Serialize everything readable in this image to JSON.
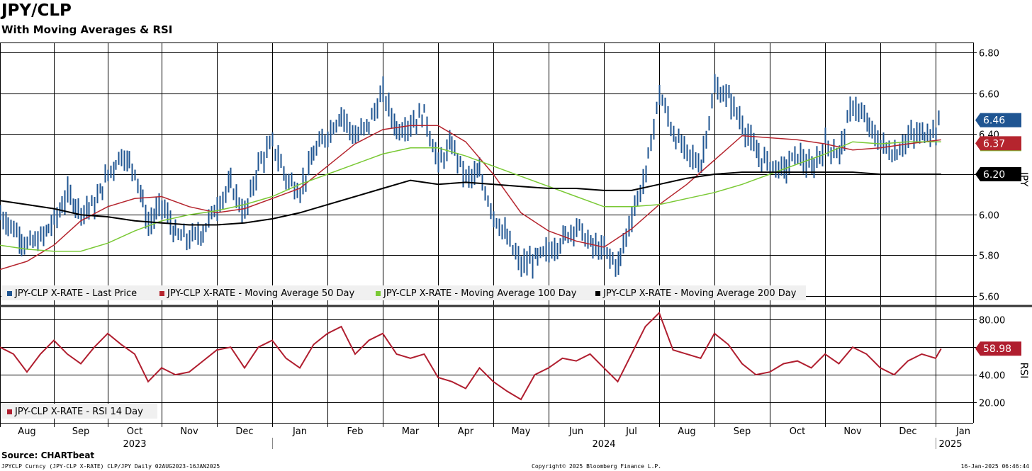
{
  "header": {
    "title": "JPY/CLP",
    "subtitle": "With Moving Averages & RSI"
  },
  "footer": {
    "source": "Source: CHARTbeat",
    "left": "JPYCLP Curncy (JPY-CLP X-RATE) CLP/JPY  Daily 02AUG2023-16JAN2025",
    "center": "Copyright© 2025 Bloomberg Finance L.P.",
    "right": "16-Jan-2025 06:46:44"
  },
  "colors": {
    "price": "#1f5592",
    "ma50": "#b5252e",
    "ma100": "#7ac935",
    "ma200": "#000000",
    "rsi": "#b01e2f",
    "grid": "#000000"
  },
  "chart_data": [
    {
      "type": "line",
      "panel": "price",
      "ylabel": "JPY",
      "ylim": [
        5.55,
        6.85
      ],
      "yticks": [
        "6.80",
        "6.60",
        "6.40",
        "6.20",
        "6.00",
        "5.80",
        "5.60"
      ],
      "ytick_values": [
        6.8,
        6.6,
        6.4,
        6.2,
        6.0,
        5.8,
        5.6
      ],
      "x_label_positions": [
        0,
        1,
        2,
        3,
        4,
        5,
        6,
        7,
        8,
        9,
        10,
        11,
        12,
        13,
        14,
        15,
        16,
        17
      ],
      "x_month_labels": [
        "Aug",
        "Sep",
        "Oct",
        "Nov",
        "Dec",
        "Jan",
        "Feb",
        "Mar",
        "Apr",
        "May",
        "Jun",
        "Jul",
        "Aug",
        "Sep",
        "Oct",
        "Nov",
        "Dec",
        "Jan"
      ],
      "x_year_labels": [
        {
          "label": "2023",
          "at": 2
        },
        {
          "label": "2024",
          "at": 10.5
        },
        {
          "label": "2025",
          "at": 17
        }
      ],
      "x_month_units": "months since Aug 2023 start",
      "last_value_labels": [
        {
          "series": "Last Price",
          "value": "6.46",
          "at": 6.46
        },
        {
          "series": "Moving Average 50 Day",
          "value": "6.37",
          "at": 6.37
        },
        {
          "series": "Moving Average 200 Day",
          "value": "6.20",
          "at": 6.2
        }
      ],
      "legend": [
        {
          "key": "price",
          "label": "JPY-CLP X-RATE - Last Price"
        },
        {
          "key": "ma50",
          "label": "JPY-CLP X-RATE - Moving Average 50 Day"
        },
        {
          "key": "ma100",
          "label": "JPY-CLP X-RATE - Moving Average 100 Day"
        },
        {
          "key": "ma200",
          "label": "JPY-CLP X-RATE - Moving Average 200 Day"
        }
      ],
      "series": [
        {
          "key": "price",
          "name": "JPY-CLP X-RATE - Last Price",
          "x": [
            0,
            0.25,
            0.5,
            0.75,
            1,
            1.25,
            1.5,
            1.75,
            2,
            2.25,
            2.5,
            2.75,
            3,
            3.25,
            3.5,
            3.75,
            4,
            4.25,
            4.5,
            4.75,
            5,
            5.25,
            5.5,
            5.75,
            6,
            6.25,
            6.5,
            6.75,
            7,
            7.25,
            7.5,
            7.75,
            8,
            8.25,
            8.5,
            8.75,
            9,
            9.25,
            9.5,
            9.75,
            10,
            10.25,
            10.5,
            10.75,
            11,
            11.25,
            11.5,
            11.75,
            12,
            12.25,
            12.5,
            12.75,
            13,
            13.25,
            13.5,
            13.75,
            14,
            14.25,
            14.5,
            14.75,
            15,
            15.25,
            15.5,
            15.75,
            16,
            16.25,
            16.5,
            16.75,
            17,
            17.1
          ],
          "values": [
            6.0,
            5.93,
            5.85,
            5.88,
            5.97,
            6.1,
            6.02,
            6.05,
            6.2,
            6.3,
            6.22,
            5.95,
            6.05,
            5.9,
            5.88,
            5.92,
            6.05,
            6.15,
            6.0,
            6.25,
            6.35,
            6.18,
            6.12,
            6.3,
            6.4,
            6.5,
            6.38,
            6.45,
            6.6,
            6.42,
            6.45,
            6.5,
            6.25,
            6.35,
            6.18,
            6.2,
            6.0,
            5.88,
            5.75,
            5.78,
            5.82,
            5.88,
            5.95,
            5.85,
            5.82,
            5.75,
            6.0,
            6.2,
            6.6,
            6.4,
            6.3,
            6.25,
            6.62,
            6.58,
            6.45,
            6.3,
            6.25,
            6.22,
            6.3,
            6.22,
            6.35,
            6.3,
            6.55,
            6.45,
            6.35,
            6.3,
            6.38,
            6.4,
            6.42,
            6.46
          ]
        },
        {
          "key": "ma50",
          "name": "JPY-CLP X-RATE - Moving Average 50 Day",
          "x": [
            0,
            0.5,
            1,
            1.5,
            2,
            2.5,
            3,
            3.5,
            4,
            4.5,
            5,
            5.5,
            6,
            6.5,
            7,
            7.5,
            8,
            8.5,
            9,
            9.5,
            10,
            10.5,
            11,
            11.5,
            12,
            12.5,
            13,
            13.5,
            14,
            14.5,
            15,
            15.5,
            16,
            16.5,
            17.1
          ],
          "values": [
            5.73,
            5.77,
            5.85,
            5.97,
            6.04,
            6.08,
            6.09,
            6.04,
            6.01,
            6.03,
            6.08,
            6.13,
            6.24,
            6.35,
            6.42,
            6.44,
            6.44,
            6.36,
            6.2,
            6.01,
            5.92,
            5.87,
            5.84,
            5.93,
            6.05,
            6.15,
            6.27,
            6.39,
            6.38,
            6.37,
            6.35,
            6.32,
            6.33,
            6.35,
            6.37
          ]
        },
        {
          "key": "ma100",
          "name": "JPY-CLP X-RATE - Moving Average 100 Day",
          "x": [
            0,
            0.5,
            1,
            1.5,
            2,
            2.5,
            3,
            3.5,
            4,
            4.5,
            5,
            5.5,
            6,
            6.5,
            7,
            7.5,
            8,
            8.5,
            9,
            9.5,
            10,
            10.5,
            11,
            11.5,
            12,
            12.5,
            13,
            13.5,
            14,
            14.5,
            15,
            15.5,
            16,
            16.5,
            17.1
          ],
          "values": [
            5.85,
            5.83,
            5.82,
            5.82,
            5.86,
            5.92,
            5.97,
            6.0,
            6.02,
            6.05,
            6.09,
            6.15,
            6.2,
            6.25,
            6.3,
            6.33,
            6.33,
            6.29,
            6.24,
            6.19,
            6.14,
            6.09,
            6.04,
            6.04,
            6.05,
            6.08,
            6.11,
            6.15,
            6.2,
            6.25,
            6.3,
            6.36,
            6.35,
            6.36,
            6.36
          ]
        },
        {
          "key": "ma200",
          "name": "JPY-CLP X-RATE - Moving Average 200 Day",
          "x": [
            0,
            0.5,
            1,
            1.5,
            2,
            2.5,
            3,
            3.5,
            4,
            4.5,
            5,
            5.5,
            6,
            6.5,
            7,
            7.5,
            8,
            8.5,
            9,
            9.5,
            10,
            10.5,
            11,
            11.5,
            12,
            12.5,
            13,
            13.5,
            14,
            14.5,
            15,
            15.5,
            16,
            16.5,
            17.1
          ],
          "values": [
            6.07,
            6.05,
            6.03,
            6.0,
            5.99,
            5.97,
            5.96,
            5.95,
            5.95,
            5.96,
            5.98,
            6.01,
            6.05,
            6.09,
            6.13,
            6.17,
            6.15,
            6.16,
            6.15,
            6.14,
            6.13,
            6.13,
            6.12,
            6.12,
            6.15,
            6.18,
            6.2,
            6.21,
            6.21,
            6.21,
            6.21,
            6.21,
            6.2,
            6.2,
            6.2
          ]
        }
      ]
    },
    {
      "type": "line",
      "panel": "rsi",
      "ylabel": "RSI",
      "ylim": [
        5,
        90
      ],
      "yticks": [
        "80.00",
        "60.00",
        "40.00",
        "20.00"
      ],
      "ytick_values": [
        80,
        60,
        40,
        20
      ],
      "last_value_labels": [
        {
          "series": "RSI 14 Day",
          "value": "58.98",
          "at": 58.98
        }
      ],
      "legend": [
        {
          "key": "rsi",
          "label": "JPY-CLP X-RATE - RSI 14 Day"
        }
      ],
      "series": [
        {
          "key": "rsi",
          "name": "JPY-CLP X-RATE - RSI 14 Day",
          "x": [
            0,
            0.25,
            0.5,
            0.75,
            1,
            1.25,
            1.5,
            1.75,
            2,
            2.25,
            2.5,
            2.75,
            3,
            3.25,
            3.5,
            3.75,
            4,
            4.25,
            4.5,
            4.75,
            5,
            5.25,
            5.5,
            5.75,
            6,
            6.25,
            6.5,
            6.75,
            7,
            7.25,
            7.5,
            7.75,
            8,
            8.25,
            8.5,
            8.75,
            9,
            9.25,
            9.5,
            9.75,
            10,
            10.25,
            10.5,
            10.75,
            11,
            11.25,
            11.5,
            11.75,
            12,
            12.25,
            12.5,
            12.75,
            13,
            13.25,
            13.5,
            13.75,
            14,
            14.25,
            14.5,
            14.75,
            15,
            15.25,
            15.5,
            15.75,
            16,
            16.25,
            16.5,
            16.75,
            17,
            17.1
          ],
          "values": [
            60,
            55,
            42,
            55,
            65,
            55,
            48,
            60,
            70,
            62,
            55,
            35,
            45,
            40,
            42,
            50,
            58,
            60,
            45,
            60,
            65,
            52,
            45,
            62,
            70,
            75,
            55,
            65,
            70,
            55,
            52,
            55,
            38,
            35,
            30,
            45,
            35,
            28,
            22,
            40,
            45,
            52,
            50,
            55,
            45,
            35,
            55,
            75,
            85,
            58,
            55,
            52,
            70,
            62,
            48,
            40,
            42,
            48,
            50,
            45,
            55,
            48,
            60,
            55,
            45,
            40,
            50,
            55,
            52,
            58.98
          ]
        }
      ]
    }
  ]
}
